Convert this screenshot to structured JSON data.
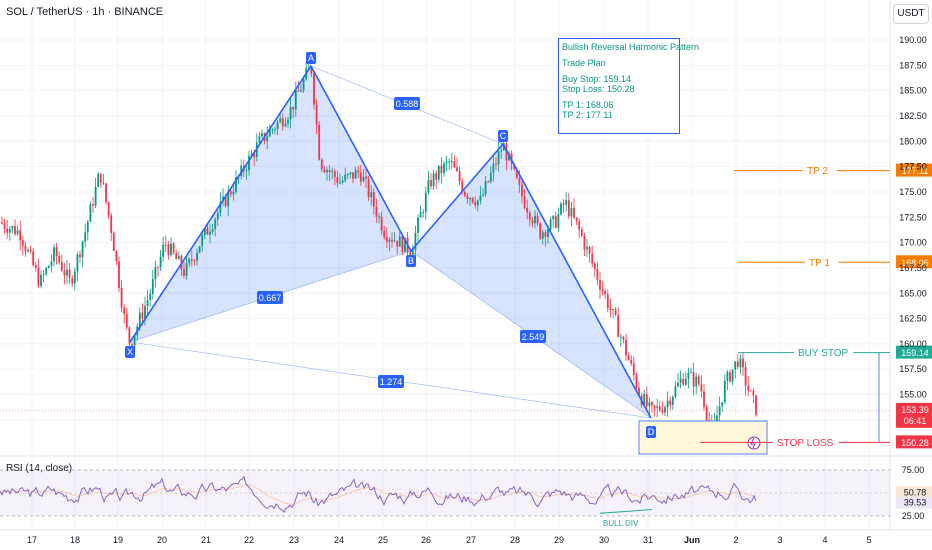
{
  "header": {
    "symbol_line": "SOL / TetherUS · 1h · BINANCE",
    "currency_button": "USDT"
  },
  "price_axis": {
    "ticks": [
      "190.00",
      "187.50",
      "185.00",
      "182.50",
      "180.00",
      "177.50",
      "175.00",
      "172.50",
      "170.00",
      "167.50",
      "165.00",
      "162.50",
      "160.00",
      "157.50",
      "155.00",
      "152.50"
    ],
    "rsi_ticks": [
      "75.00",
      "25.00"
    ]
  },
  "time_axis": {
    "labels": [
      "17",
      "18",
      "19",
      "20",
      "21",
      "22",
      "23",
      "24",
      "25",
      "26",
      "27",
      "28",
      "29",
      "30",
      "31",
      "Jun",
      "2",
      "3",
      "4",
      "5"
    ]
  },
  "pattern": {
    "points": [
      {
        "name": "X",
        "price": 160.0
      },
      {
        "name": "A",
        "price": 187.5
      },
      {
        "name": "B",
        "price": 169.3
      },
      {
        "name": "C",
        "price": 179.7
      },
      {
        "name": "D",
        "price": 153.2
      }
    ],
    "ratios": {
      "xb": "0.667",
      "ac": "0.588",
      "bd": "2.549",
      "xd": "1.274"
    }
  },
  "trade_plan": {
    "title": "Bullish Reversal Harmonic Pattern",
    "subtitle": "Trade Plan",
    "buy_stop": "Buy Stop: 159.14",
    "stop_loss": "Stop Loss: 150.28",
    "tp1": "TP 1: 168.06",
    "tp2": "TP 2: 177.11"
  },
  "levels": {
    "tp2": {
      "label": "TP 2",
      "price_tag": "177.11",
      "color": "#f57c00"
    },
    "tp1": {
      "label": "TP 1",
      "price_tag": "168.06",
      "color": "#f57c00"
    },
    "buy_stop": {
      "label": "BUY STOP",
      "price_tag": "159.14",
      "color": "#22ab94"
    },
    "stop_loss": {
      "label": "STOP LOSS",
      "price_tag": "150.28",
      "color": "#f23645"
    }
  },
  "current_price": {
    "price": "153.39",
    "countdown": "06:41",
    "color": "#f23645"
  },
  "rsi": {
    "title": "RSI (14, close)",
    "value": "39.53",
    "ma_value": "50.78",
    "upper": 75,
    "lower": 25,
    "annotation": "BULL DIV"
  },
  "chart_data": {
    "type": "candlestick",
    "title": "SOL / TetherUS · 1h · BINANCE",
    "ylim": [
      148,
      192
    ],
    "y_unit": "USDT",
    "close_approx": [
      {
        "x": "17",
        "y": 170
      },
      {
        "x": "18",
        "y": 171
      },
      {
        "x": "19",
        "y": 161
      },
      {
        "x": "20",
        "y": 167
      },
      {
        "x": "21",
        "y": 172
      },
      {
        "x": "22",
        "y": 178
      },
      {
        "x": "23",
        "y": 187.5
      },
      {
        "x": "24",
        "y": 176
      },
      {
        "x": "25",
        "y": 171
      },
      {
        "x": "26",
        "y": 175
      },
      {
        "x": "27",
        "y": 173
      },
      {
        "x": "27.7",
        "y": 179.7
      },
      {
        "x": "29",
        "y": 172
      },
      {
        "x": "30",
        "y": 163
      },
      {
        "x": "31",
        "y": 153.2
      },
      {
        "x": "Jun",
        "y": 155
      },
      {
        "x": "2",
        "y": 157
      },
      {
        "x": "2.5",
        "y": 153.39
      }
    ],
    "rsi_series": {
      "name": "RSI (14, close)",
      "last": 39.53,
      "ma_last": 50.78,
      "upper": 75,
      "lower": 25
    }
  }
}
